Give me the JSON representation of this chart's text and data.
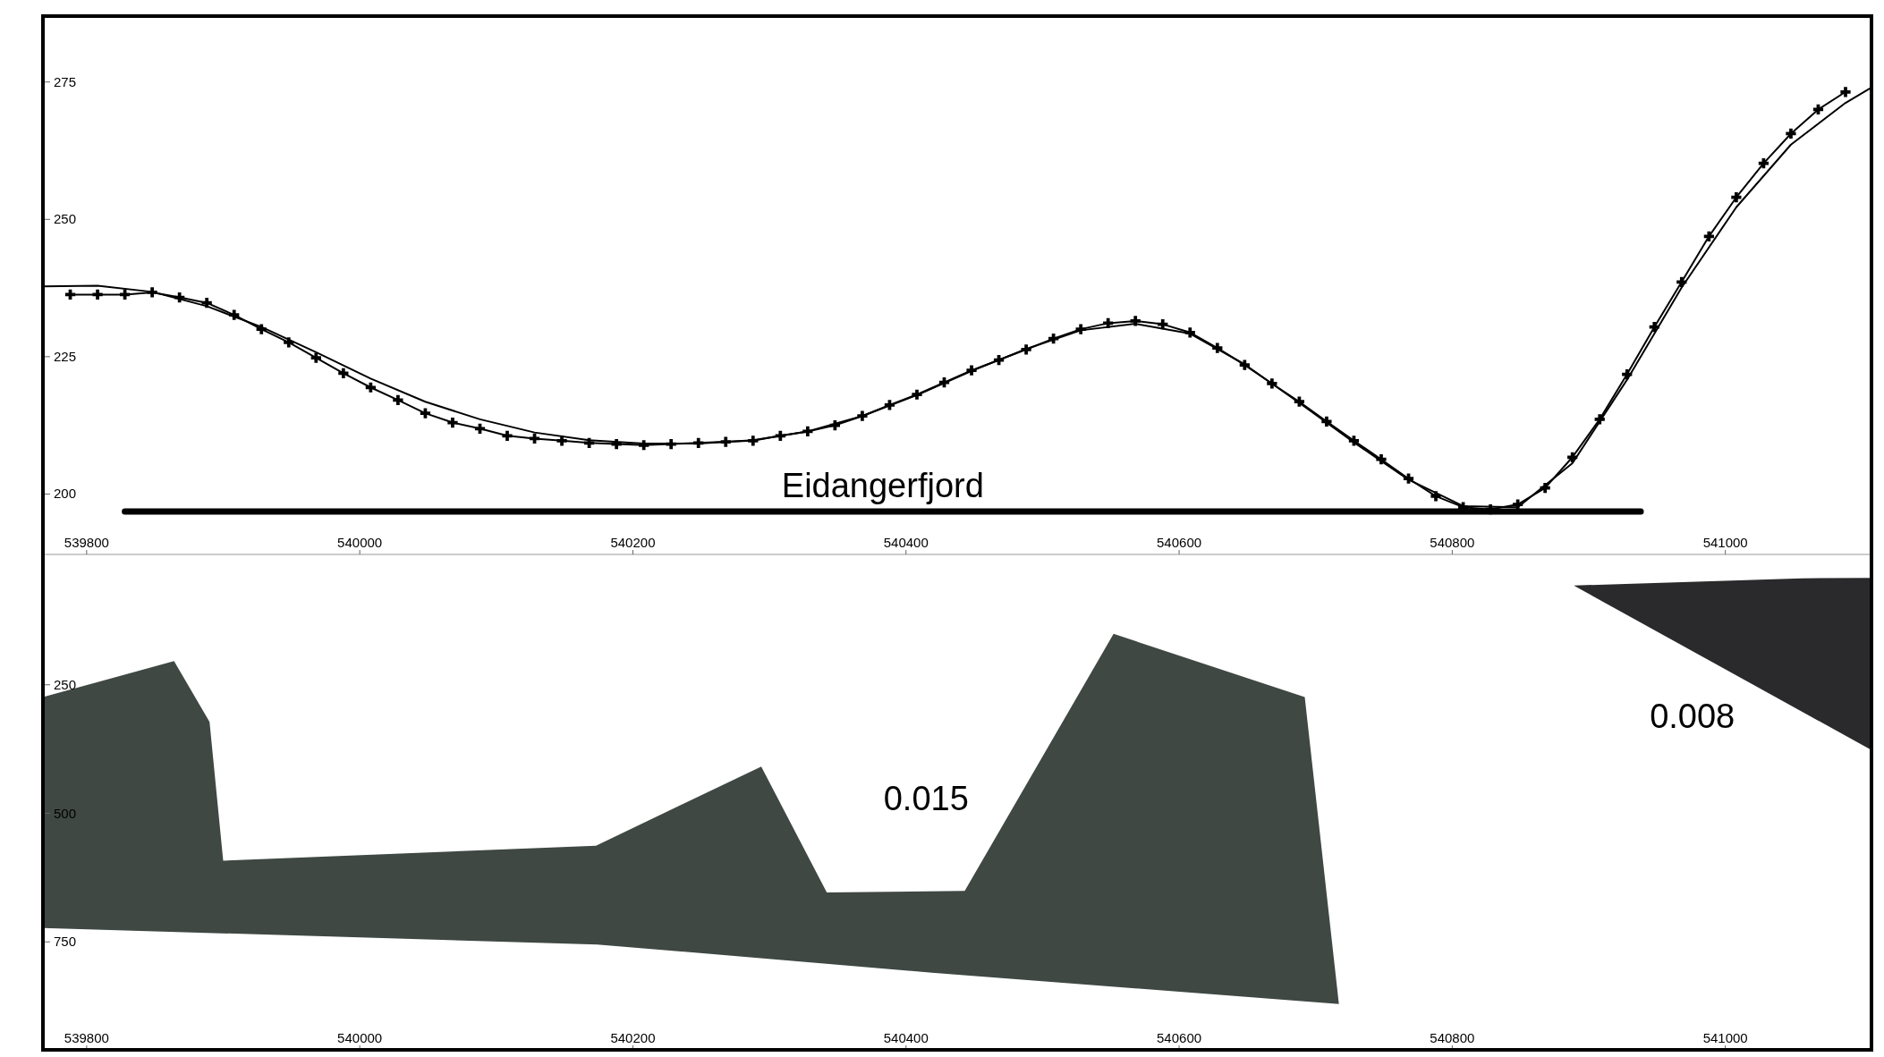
{
  "chart_data": [
    {
      "type": "line",
      "xlim": [
        539768,
        541107
      ],
      "xticks": [
        539800,
        540000,
        540200,
        540400,
        540600,
        540800,
        541000
      ],
      "ylim": [
        189,
        287
      ],
      "yticks": [
        200,
        225,
        250,
        275
      ],
      "grid": false,
      "series": [
        {
          "color": "#000000",
          "marker": "cross",
          "x": [
            539788,
            539808,
            539828,
            539848,
            539868,
            539888,
            539908,
            539928,
            539948,
            539968,
            539988,
            540008,
            540028,
            540048,
            540068,
            540088,
            540108,
            540128,
            540148,
            540168,
            540188,
            540208,
            540228,
            540248,
            540268,
            540288,
            540308,
            540328,
            540348,
            540368,
            540388,
            540408,
            540428,
            540448,
            540468,
            540488,
            540508,
            540528,
            540548,
            540568,
            540588,
            540608,
            540628,
            540648,
            540668,
            540688,
            540708,
            540728,
            540748,
            540768,
            540788,
            540808,
            540828,
            540848,
            540868,
            540888,
            540908,
            540928,
            540948,
            540968,
            540988,
            541008,
            541028,
            541048,
            541068,
            541088
          ],
          "values": [
            236.3,
            236.3,
            236.3,
            236.7,
            235.8,
            234.8,
            232.6,
            230.0,
            227.6,
            224.8,
            222.0,
            219.4,
            217.1,
            214.7,
            213.0,
            211.9,
            210.6,
            210.1,
            209.7,
            209.3,
            209.1,
            208.9,
            209.1,
            209.3,
            209.5,
            209.7,
            210.6,
            211.4,
            212.5,
            214.2,
            216.2,
            218.1,
            220.3,
            222.5,
            224.4,
            226.3,
            228.3,
            230.0,
            231.1,
            231.5,
            230.9,
            229.4,
            226.6,
            223.5,
            220.1,
            216.8,
            213.2,
            209.7,
            206.3,
            202.8,
            199.6,
            197.6,
            197.2,
            198.1,
            201.1,
            206.7,
            213.6,
            221.8,
            230.4,
            238.6,
            246.9,
            254.0,
            260.2,
            265.6,
            270.0,
            273.2
          ]
        },
        {
          "color": "#000000",
          "marker": "none",
          "x": [
            539768,
            539808,
            539848,
            539888,
            539928,
            539968,
            540008,
            540048,
            540088,
            540128,
            540168,
            540208,
            540248,
            540288,
            540328,
            540368,
            540408,
            540448,
            540488,
            540528,
            540568,
            540608,
            540648,
            540688,
            540728,
            540768,
            540808,
            540848,
            540888,
            540928,
            540968,
            541008,
            541048,
            541088,
            541107
          ],
          "values": [
            237.8,
            237.9,
            236.8,
            234.2,
            230.4,
            225.8,
            221.0,
            216.8,
            213.6,
            211.2,
            209.8,
            209.2,
            209.2,
            209.8,
            211.4,
            214.2,
            218.0,
            222.4,
            226.4,
            229.8,
            231.0,
            229.2,
            223.6,
            216.6,
            209.4,
            202.6,
            197.8,
            197.6,
            205.6,
            220.8,
            237.6,
            252.2,
            263.6,
            271.2,
            274.0
          ]
        },
        {
          "name": "Eidangerfjord",
          "color": "#000000",
          "marker": "none",
          "x": [
            539828,
            540938
          ],
          "values": [
            196.8,
            196.8
          ]
        }
      ]
    },
    {
      "type": "area",
      "xlim": [
        539768,
        541107
      ],
      "xticks": [
        539800,
        540000,
        540200,
        540400,
        540600,
        540800,
        541000
      ],
      "ylim": [
        960,
        0
      ],
      "yticks": [
        250,
        500,
        750
      ],
      "grid": false,
      "series": [
        {
          "color": "#3f4843",
          "x": [
            539768,
            539864,
            539890,
            539900,
            540173,
            540294,
            540342,
            540443,
            540552,
            540692,
            540717,
            540419,
            540174,
            539768
          ],
          "values": [
            274,
            204,
            322,
            592,
            563,
            409,
            654,
            651,
            151,
            274,
            871,
            810,
            755,
            723
          ]
        },
        {
          "color": "#2a2a2c",
          "x": [
            540889,
            541056,
            541107,
            541107
          ],
          "values": [
            57,
            43,
            42,
            377
          ]
        }
      ],
      "annotations": [
        "0.015",
        "0.008"
      ]
    }
  ]
}
